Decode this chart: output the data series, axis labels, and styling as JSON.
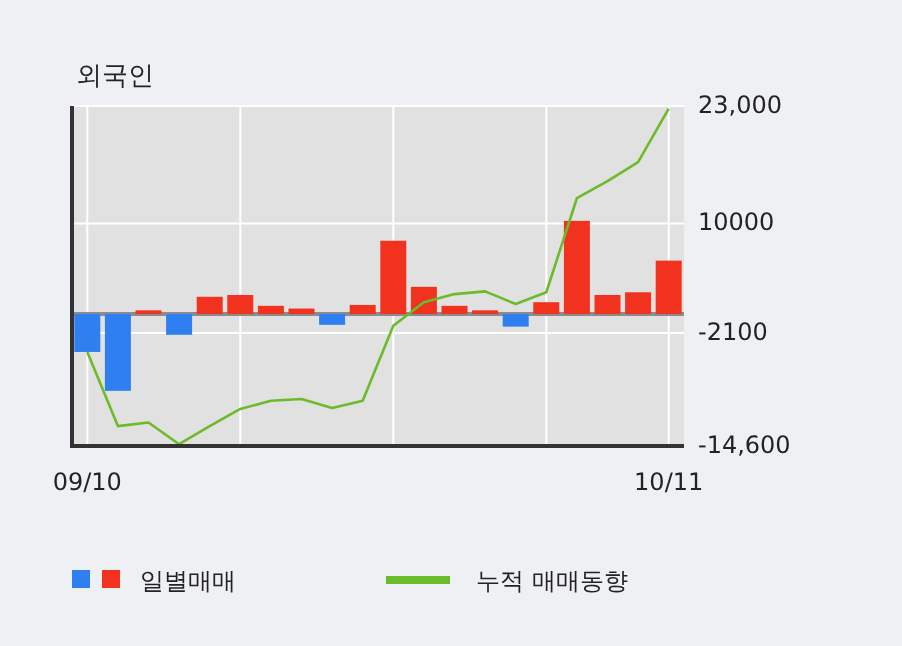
{
  "chart_data": {
    "type": "bar",
    "title": "외국인",
    "categories": [
      "09/10",
      null,
      null,
      null,
      null,
      null,
      null,
      null,
      null,
      null,
      null,
      null,
      null,
      null,
      null,
      null,
      null,
      null,
      null,
      "10/11"
    ],
    "series": [
      {
        "name": "일별매매",
        "colors": [
          "#2f7ff0",
          "#2f7ff0",
          "#f0321e",
          "#2f7ff0",
          "#f0321e",
          "#f0321e",
          "#f0321e",
          "#f0321e",
          "#2f7ff0",
          "#f0321e",
          "#f0321e",
          "#f0321e",
          "#f0321e",
          "#f0321e",
          "#2f7ff0",
          "#f0321e",
          "#f0321e",
          "#f0321e",
          "#f0321e",
          "#f0321e"
        ],
        "values": [
          -4200,
          -8500,
          400,
          -2300,
          1900,
          2100,
          900,
          600,
          -1200,
          1000,
          8100,
          3000,
          900,
          400,
          -1400,
          1300,
          10300,
          2100,
          2400,
          5900
        ]
      },
      {
        "name": "누적 매매동향",
        "type": "line",
        "color": "#6cbb2a",
        "values": [
          -4200,
          -12400,
          -12000,
          -14400,
          -12400,
          -10500,
          -9600,
          -9400,
          -10400,
          -9600,
          -1300,
          1300,
          2200,
          2500,
          1100,
          2400,
          12800,
          14700,
          16800,
          22700
        ]
      }
    ],
    "ylim": [
      -14600,
      23000
    ],
    "yticks": [
      {
        "value": 23000,
        "label": "23,000"
      },
      10000,
      -2100,
      {
        "value": -14600,
        "label": "-14,600"
      }
    ],
    "grid": true,
    "legend": "bottom"
  }
}
